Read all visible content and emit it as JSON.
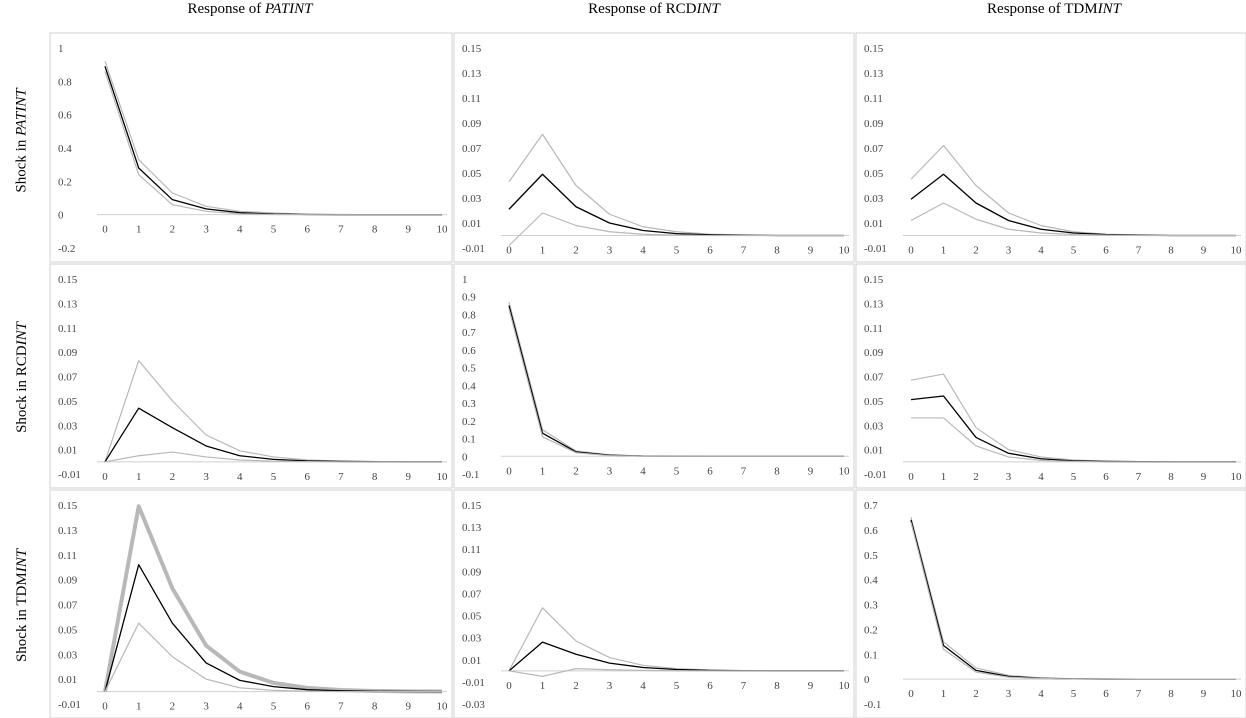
{
  "col_headers": [
    {
      "prefix": "Response of ",
      "italic": "PATINT",
      "suffix": ""
    },
    {
      "prefix": "Response of RCD",
      "italic": "INT",
      "suffix": ""
    },
    {
      "prefix": "Response of TDM",
      "italic": "INT",
      "suffix": ""
    }
  ],
  "row_headers": [
    {
      "prefix": "Shock in ",
      "italic": "PATINT",
      "suffix": ""
    },
    {
      "prefix": "Shock in RCD",
      "italic": "INT",
      "suffix": ""
    },
    {
      "prefix": "Shock in TDM",
      "italic": "INT",
      "suffix": ""
    }
  ],
  "colors": {
    "irf": "#000000",
    "band": "#b8b8b8",
    "axis": "#cfcfcf",
    "border": "#d0d0d0"
  },
  "chart_data": [
    {
      "type": "line",
      "row": 0,
      "col": 0,
      "x": [
        0,
        1,
        2,
        3,
        4,
        5,
        6,
        7,
        8,
        9,
        10
      ],
      "yticks": [
        "-0.2",
        "0",
        "0.2",
        "0.4",
        "0.6",
        "0.8",
        "1"
      ],
      "ylim": [
        -0.2,
        1
      ],
      "series": [
        {
          "values": [
            0.92,
            0.33,
            0.13,
            0.05,
            0.02,
            0.01,
            0.003,
            0.001,
            0,
            0,
            0
          ],
          "role": "band"
        },
        {
          "values": [
            0.89,
            0.28,
            0.09,
            0.035,
            0.012,
            0.004,
            0.001,
            0,
            0,
            0,
            0
          ],
          "role": "irf"
        },
        {
          "values": [
            0.86,
            0.24,
            0.06,
            0.02,
            0.005,
            0.001,
            0,
            0,
            0,
            0,
            0
          ],
          "role": "band"
        }
      ]
    },
    {
      "type": "line",
      "row": 0,
      "col": 1,
      "x": [
        0,
        1,
        2,
        3,
        4,
        5,
        6,
        7,
        8,
        9,
        10
      ],
      "yticks": [
        "-0.01",
        "0.01",
        "0.03",
        "0.05",
        "0.07",
        "0.09",
        "0.11",
        "0.13",
        "0.15"
      ],
      "ylim": [
        -0.01,
        0.15
      ],
      "series": [
        {
          "values": [
            0.043,
            0.081,
            0.04,
            0.017,
            0.007,
            0.003,
            0.001,
            0.0005,
            0,
            0,
            0
          ],
          "role": "band"
        },
        {
          "values": [
            0.021,
            0.049,
            0.023,
            0.01,
            0.004,
            0.0015,
            0.0006,
            0.0002,
            0,
            0,
            0
          ],
          "role": "irf"
        },
        {
          "values": [
            -0.008,
            0.018,
            0.008,
            0.003,
            0.001,
            0.0003,
            0,
            0,
            0,
            0,
            0
          ],
          "role": "band"
        }
      ]
    },
    {
      "type": "line",
      "row": 0,
      "col": 2,
      "x": [
        0,
        1,
        2,
        3,
        4,
        5,
        6,
        7,
        8,
        9,
        10
      ],
      "yticks": [
        "-0.01",
        "0.01",
        "0.03",
        "0.05",
        "0.07",
        "0.09",
        "0.11",
        "0.13",
        "0.15"
      ],
      "ylim": [
        -0.01,
        0.15
      ],
      "series": [
        {
          "values": [
            0.045,
            0.072,
            0.04,
            0.018,
            0.008,
            0.003,
            0.001,
            0.0004,
            0,
            0,
            0
          ],
          "role": "band"
        },
        {
          "values": [
            0.029,
            0.049,
            0.026,
            0.012,
            0.005,
            0.002,
            0.0008,
            0.0003,
            0,
            0,
            0
          ],
          "role": "irf"
        },
        {
          "values": [
            0.012,
            0.026,
            0.013,
            0.005,
            0.002,
            0.0008,
            0.0003,
            0,
            0,
            0,
            0
          ],
          "role": "band"
        }
      ]
    },
    {
      "type": "line",
      "row": 1,
      "col": 0,
      "x": [
        0,
        1,
        2,
        3,
        4,
        5,
        6,
        7,
        8,
        9,
        10
      ],
      "yticks": [
        "-0.01",
        "0.01",
        "0.03",
        "0.05",
        "0.07",
        "0.09",
        "0.11",
        "0.13",
        "0.15"
      ],
      "ylim": [
        -0.01,
        0.15
      ],
      "series": [
        {
          "values": [
            0,
            0.083,
            0.05,
            0.022,
            0.009,
            0.004,
            0.0015,
            0.0006,
            0.0002,
            0,
            0
          ],
          "role": "band"
        },
        {
          "values": [
            0,
            0.044,
            0.028,
            0.013,
            0.005,
            0.002,
            0.0008,
            0.0003,
            0.0001,
            0,
            0
          ],
          "role": "irf"
        },
        {
          "values": [
            0,
            0.005,
            0.008,
            0.004,
            0.0015,
            0.0005,
            0.0002,
            0,
            0,
            0,
            0
          ],
          "role": "band"
        }
      ]
    },
    {
      "type": "line",
      "row": 1,
      "col": 1,
      "x": [
        0,
        1,
        2,
        3,
        4,
        5,
        6,
        7,
        8,
        9,
        10
      ],
      "yticks": [
        "-0.1",
        "0",
        "0.1",
        "0.2",
        "0.3",
        "0.4",
        "0.5",
        "0.6",
        "0.7",
        "0.8",
        "0.9",
        "1"
      ],
      "ylim": [
        -0.1,
        1
      ],
      "series": [
        {
          "values": [
            0.87,
            0.15,
            0.03,
            0.008,
            0.002,
            0.0005,
            0,
            0,
            0,
            0,
            0
          ],
          "role": "band"
        },
        {
          "values": [
            0.85,
            0.13,
            0.025,
            0.006,
            0.0015,
            0.0004,
            0,
            0,
            0,
            0,
            0
          ],
          "role": "irf"
        },
        {
          "values": [
            0.83,
            0.11,
            0.02,
            0.004,
            0.001,
            0.0002,
            0,
            0,
            0,
            0,
            0
          ],
          "role": "band"
        }
      ]
    },
    {
      "type": "line",
      "row": 1,
      "col": 2,
      "x": [
        0,
        1,
        2,
        3,
        4,
        5,
        6,
        7,
        8,
        9,
        10
      ],
      "yticks": [
        "-0.01",
        "0.01",
        "0.03",
        "0.05",
        "0.07",
        "0.09",
        "0.11",
        "0.13",
        "0.15"
      ],
      "ylim": [
        -0.01,
        0.15
      ],
      "series": [
        {
          "values": [
            0.067,
            0.072,
            0.028,
            0.01,
            0.004,
            0.0015,
            0.0005,
            0.0002,
            0,
            0,
            0
          ],
          "role": "band"
        },
        {
          "values": [
            0.051,
            0.054,
            0.02,
            0.007,
            0.0025,
            0.0008,
            0.0003,
            0.0001,
            0,
            0,
            0
          ],
          "role": "irf"
        },
        {
          "values": [
            0.036,
            0.036,
            0.013,
            0.004,
            0.0012,
            0.0003,
            0,
            0,
            0,
            0,
            0
          ],
          "role": "band"
        }
      ]
    },
    {
      "type": "line",
      "row": 2,
      "col": 0,
      "x": [
        0,
        1,
        2,
        3,
        4,
        5,
        6,
        7,
        8,
        9,
        10
      ],
      "yticks": [
        "-0.01",
        "0.01",
        "0.03",
        "0.05",
        "0.07",
        "0.09",
        "0.11",
        "0.13",
        "0.15"
      ],
      "ylim": [
        -0.01,
        0.15
      ],
      "series": [
        {
          "values": [
            0,
            0.149,
            0.083,
            0.037,
            0.016,
            0.007,
            0.003,
            0.0013,
            0.0005,
            0.0002,
            0.0001
          ],
          "role": "band",
          "emphasis": true
        },
        {
          "values": [
            0,
            0.102,
            0.055,
            0.023,
            0.009,
            0.004,
            0.0015,
            0.0006,
            0.0002,
            0.0001,
            0
          ],
          "role": "irf"
        },
        {
          "values": [
            0,
            0.055,
            0.028,
            0.01,
            0.003,
            0.001,
            0.0003,
            0,
            0,
            0,
            0
          ],
          "role": "band"
        }
      ]
    },
    {
      "type": "line",
      "row": 2,
      "col": 1,
      "x": [
        0,
        1,
        2,
        3,
        4,
        5,
        6,
        7,
        8,
        9,
        10
      ],
      "yticks": [
        "-0.03",
        "-0.01",
        "0.01",
        "0.03",
        "0.05",
        "0.07",
        "0.09",
        "0.11",
        "0.13",
        "0.15"
      ],
      "ylim": [
        -0.03,
        0.15
      ],
      "series": [
        {
          "values": [
            0,
            0.057,
            0.027,
            0.012,
            0.005,
            0.002,
            0.0008,
            0.0003,
            0.0001,
            0,
            0
          ],
          "role": "band"
        },
        {
          "values": [
            0,
            0.026,
            0.015,
            0.007,
            0.003,
            0.0012,
            0.0004,
            0.0001,
            0,
            0,
            0
          ],
          "role": "irf"
        },
        {
          "values": [
            0,
            -0.005,
            0.002,
            0.001,
            0.0004,
            0.0001,
            0,
            0,
            0,
            0,
            0
          ],
          "role": "band"
        }
      ]
    },
    {
      "type": "line",
      "row": 2,
      "col": 2,
      "x": [
        0,
        1,
        2,
        3,
        4,
        5,
        6,
        7,
        8,
        9,
        10
      ],
      "yticks": [
        "-0.1",
        "0",
        "0.1",
        "0.2",
        "0.3",
        "0.4",
        "0.5",
        "0.6",
        "0.7"
      ],
      "ylim": [
        -0.1,
        0.7
      ],
      "series": [
        {
          "values": [
            0.65,
            0.15,
            0.045,
            0.015,
            0.005,
            0.0015,
            0.0005,
            0,
            0,
            0,
            0
          ],
          "role": "band"
        },
        {
          "values": [
            0.64,
            0.135,
            0.035,
            0.011,
            0.0035,
            0.001,
            0.0003,
            0,
            0,
            0,
            0
          ],
          "role": "irf"
        },
        {
          "values": [
            0.63,
            0.12,
            0.028,
            0.008,
            0.0025,
            0.0007,
            0.0002,
            0,
            0,
            0,
            0
          ],
          "role": "band"
        }
      ]
    }
  ]
}
